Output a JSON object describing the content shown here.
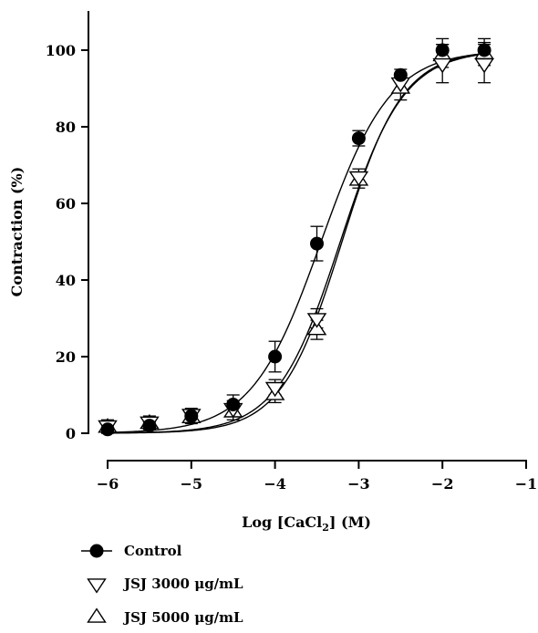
{
  "chart_data": {
    "type": "scatter",
    "xlabel_prefix": "Log [CaCl",
    "xlabel_sub": "2",
    "xlabel_suffix": "] (M)",
    "ylabel": "Contraction (%)",
    "xlim": [
      -6,
      -1
    ],
    "ylim": [
      0,
      100
    ],
    "x_ticks": [
      -6,
      -5,
      -4,
      -3,
      -2,
      -1
    ],
    "x_tick_labels": [
      "−6",
      "−5",
      "−4",
      "−3",
      "−2",
      "−1"
    ],
    "y_ticks": [
      0,
      20,
      40,
      60,
      80,
      100
    ],
    "y_tick_labels": [
      "0",
      "20",
      "40",
      "60",
      "80",
      "100"
    ],
    "x": [
      -6,
      -5.5,
      -5,
      -4.5,
      -4,
      -3.5,
      -3,
      -2.5,
      -2,
      -1.5
    ],
    "legend_position": "bottom-left",
    "series": [
      {
        "name": "Control",
        "marker": "filled-circle",
        "color": "#000000",
        "values": [
          1,
          2,
          4.5,
          7.5,
          20,
          49.5,
          77,
          93.5,
          100,
          100
        ],
        "errors": [
          1,
          1,
          1.5,
          2.5,
          4,
          4.5,
          2,
          1.5,
          3,
          3
        ],
        "fit_logEC50": -3.45,
        "fit_hill": 1.05
      },
      {
        "name": "JSJ 3000 μg/mL",
        "marker": "open-triangle-down",
        "color": "#000000",
        "values": [
          2,
          3,
          5,
          6.5,
          12,
          30,
          67,
          91.5,
          96.5,
          96.5
        ],
        "errors": [
          1.5,
          1.5,
          1.5,
          2,
          2,
          2.5,
          2,
          2.5,
          5,
          5
        ],
        "fit_logEC50": -3.22,
        "fit_hill": 1.15
      },
      {
        "name": "JSJ 5000 μg/mL",
        "marker": "open-triangle-up",
        "color": "#000000",
        "values": [
          1.5,
          2.5,
          4,
          5.5,
          10,
          27,
          66,
          90,
          98.5,
          99
        ],
        "errors": [
          1.5,
          1.5,
          1.5,
          2,
          2,
          2.5,
          2,
          3,
          3,
          3
        ],
        "fit_logEC50": -3.2,
        "fit_hill": 1.2
      }
    ]
  }
}
